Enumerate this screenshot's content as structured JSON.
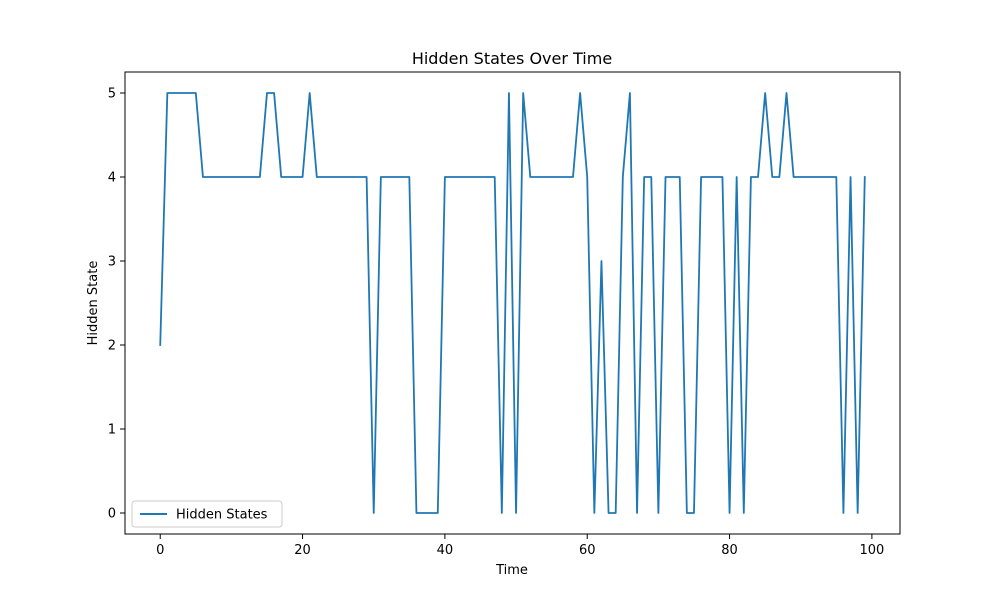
{
  "chart_data": {
    "type": "line",
    "title": "Hidden States Over Time",
    "xlabel": "Time",
    "ylabel": "Hidden State",
    "xlim": [
      -4.95,
      103.95
    ],
    "ylim": [
      -0.25,
      5.25
    ],
    "xticks": [
      0,
      20,
      40,
      60,
      80,
      100
    ],
    "yticks": [
      0,
      1,
      2,
      3,
      4,
      5
    ],
    "grid": false,
    "legend_position": "lower left",
    "series": [
      {
        "name": "Hidden States",
        "color": "#1f77b4",
        "x": [
          0,
          1,
          2,
          3,
          4,
          5,
          6,
          7,
          8,
          9,
          10,
          11,
          12,
          13,
          14,
          15,
          16,
          17,
          18,
          19,
          20,
          21,
          22,
          23,
          24,
          25,
          26,
          27,
          28,
          29,
          30,
          31,
          32,
          33,
          34,
          35,
          36,
          37,
          38,
          39,
          40,
          41,
          42,
          43,
          44,
          45,
          46,
          47,
          48,
          49,
          50,
          51,
          52,
          53,
          54,
          55,
          56,
          57,
          58,
          59,
          60,
          61,
          62,
          63,
          64,
          65,
          66,
          67,
          68,
          69,
          70,
          71,
          72,
          73,
          74,
          75,
          76,
          77,
          78,
          79,
          80,
          81,
          82,
          83,
          84,
          85,
          86,
          87,
          88,
          89,
          90,
          91,
          92,
          93,
          94,
          95,
          96,
          97,
          98,
          99
        ],
        "values": [
          2,
          5,
          5,
          5,
          5,
          5,
          4,
          4,
          4,
          4,
          4,
          4,
          4,
          4,
          4,
          5,
          5,
          4,
          4,
          4,
          4,
          5,
          4,
          4,
          4,
          4,
          4,
          4,
          4,
          4,
          0,
          4,
          4,
          4,
          4,
          4,
          0,
          0,
          0,
          0,
          4,
          4,
          4,
          4,
          4,
          4,
          4,
          4,
          0,
          5,
          0,
          5,
          4,
          4,
          4,
          4,
          4,
          4,
          4,
          5,
          4,
          0,
          3,
          0,
          0,
          4,
          5,
          0,
          4,
          4,
          0,
          4,
          4,
          4,
          0,
          0,
          4,
          4,
          4,
          4,
          0,
          4,
          0,
          4,
          4,
          5,
          4,
          4,
          5,
          4,
          4,
          4,
          4,
          4,
          4,
          4,
          0,
          4,
          0,
          4
        ]
      }
    ]
  }
}
